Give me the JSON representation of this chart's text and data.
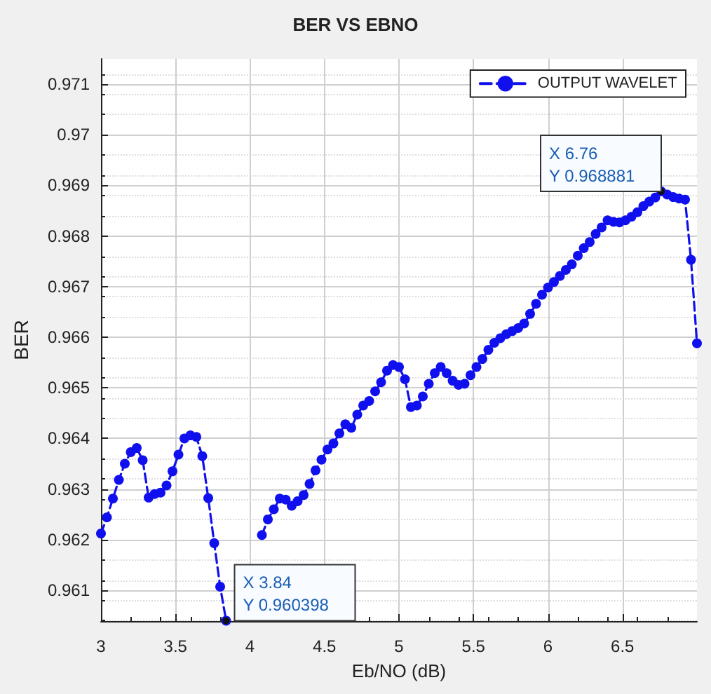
{
  "chart_data": {
    "type": "line",
    "title": "BER VS EBNO",
    "xlabel": "Eb/NO (dB)",
    "ylabel": "BER",
    "x": [
      3.0,
      3.04,
      3.08,
      3.12,
      3.16,
      3.2,
      3.24,
      3.28,
      3.32,
      3.36,
      3.4,
      3.44,
      3.48,
      3.52,
      3.56,
      3.6,
      3.64,
      3.68,
      3.72,
      3.76,
      3.8,
      3.84,
      3.88,
      3.92,
      3.96,
      4.0,
      4.04,
      4.08,
      4.12,
      4.16,
      4.2,
      4.24,
      4.28,
      4.32,
      4.36,
      4.4,
      4.44,
      4.48,
      4.52,
      4.56,
      4.6,
      4.64,
      4.68,
      4.72,
      4.76,
      4.8,
      4.84,
      4.88,
      4.92,
      4.96,
      5.0,
      5.04,
      5.08,
      5.12,
      5.16,
      5.2,
      5.24,
      5.28,
      5.32,
      5.36,
      5.4,
      5.44,
      5.48,
      5.52,
      5.56,
      5.6,
      5.64,
      5.68,
      5.72,
      5.76,
      5.8,
      5.84,
      5.88,
      5.92,
      5.96,
      6.0,
      6.04,
      6.08,
      6.12,
      6.16,
      6.2,
      6.24,
      6.28,
      6.32,
      6.36,
      6.4,
      6.44,
      6.48,
      6.52,
      6.56,
      6.6,
      6.64,
      6.68,
      6.72,
      6.76,
      6.8,
      6.84,
      6.88,
      6.92,
      6.96,
      7.0
    ],
    "series": [
      {
        "name": "OUTPUT WAVELET",
        "color": "#1010ee",
        "values": [
          0.96212,
          0.96244,
          0.96281,
          0.96318,
          0.9635,
          0.96373,
          0.96381,
          0.96357,
          0.96283,
          0.9629,
          0.96293,
          0.96307,
          0.96335,
          0.96368,
          0.964,
          0.96406,
          0.96403,
          0.96365,
          0.96282,
          0.96193,
          0.96107,
          0.960398,
          null,
          null,
          null,
          null,
          null,
          0.96209,
          0.9624,
          0.9626,
          0.96281,
          0.96279,
          0.96267,
          0.96276,
          0.96288,
          0.9631,
          0.96337,
          0.96358,
          0.96378,
          0.9639,
          0.9641,
          0.96428,
          0.96421,
          0.96447,
          0.96465,
          0.96474,
          0.96493,
          0.96511,
          0.96534,
          0.96545,
          0.96541,
          0.96517,
          0.96462,
          0.96465,
          0.96483,
          0.96508,
          0.96529,
          0.96541,
          0.96529,
          0.96514,
          0.96506,
          0.96508,
          0.96525,
          0.96541,
          0.96557,
          0.96575,
          0.96589,
          0.96598,
          0.96606,
          0.96612,
          0.96618,
          0.96627,
          0.96646,
          0.96666,
          0.96684,
          0.96698,
          0.96709,
          0.96721,
          0.96733,
          0.96744,
          0.96761,
          0.96776,
          0.96788,
          0.96804,
          0.96817,
          0.96831,
          0.96828,
          0.96827,
          0.96831,
          0.96838,
          0.96847,
          0.96859,
          0.96868,
          0.96876,
          0.968881,
          0.96882,
          0.96877,
          0.96874,
          0.96872,
          0.96753,
          0.96588
        ]
      }
    ],
    "xlim": [
      3,
      7
    ],
    "xticks": [
      3,
      3.5,
      4,
      4.5,
      5,
      5.5,
      6,
      6.5
    ],
    "ylim": [
      0.96039,
      0.9715
    ],
    "yticks": [
      0.961,
      0.962,
      0.963,
      0.964,
      0.965,
      0.966,
      0.967,
      0.968,
      0.969,
      0.97,
      0.971
    ],
    "grid": true,
    "legend": "top right",
    "marker": "circle",
    "line_style": "dashed",
    "annotations": [
      {
        "text": "X 3.84\nY 0.960398",
        "x": 3.84,
        "y": 0.960398
      },
      {
        "text": "X 6.76\nY 0.968881",
        "x": 6.76,
        "y": 0.968881
      }
    ]
  }
}
